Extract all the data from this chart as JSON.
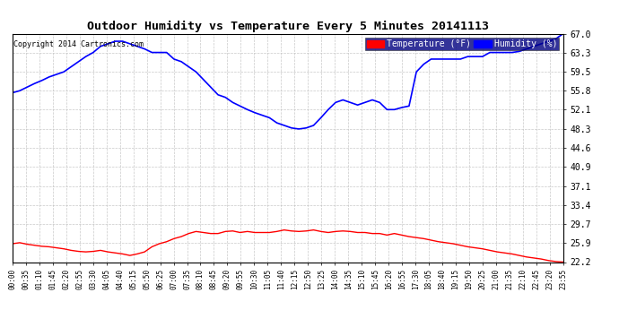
{
  "title": "Outdoor Humidity vs Temperature Every 5 Minutes 20141113",
  "copyright": "Copyright 2014 Cartronics.com",
  "legend_temp_label": "Temperature (°F)",
  "legend_hum_label": "Humidity (%)",
  "temp_color": "#FF0000",
  "hum_color": "#0000FF",
  "background_color": "#FFFFFF",
  "grid_color": "#BBBBBB",
  "ylim": [
    22.2,
    67.0
  ],
  "yticks": [
    22.2,
    25.9,
    29.7,
    33.4,
    37.1,
    40.9,
    44.6,
    48.3,
    52.1,
    55.8,
    59.5,
    63.3,
    67.0
  ],
  "x_labels": [
    "00:00",
    "00:35",
    "01:10",
    "01:45",
    "02:20",
    "02:55",
    "03:30",
    "04:05",
    "04:40",
    "05:15",
    "05:50",
    "06:25",
    "07:00",
    "07:35",
    "08:10",
    "08:45",
    "09:20",
    "09:55",
    "10:30",
    "11:05",
    "11:40",
    "12:15",
    "12:50",
    "13:25",
    "14:00",
    "14:35",
    "15:10",
    "15:45",
    "16:20",
    "16:55",
    "17:30",
    "18:05",
    "18:40",
    "19:15",
    "19:50",
    "20:25",
    "21:00",
    "21:35",
    "22:10",
    "22:45",
    "23:20",
    "23:55"
  ],
  "hum_data": [
    55.4,
    55.8,
    56.5,
    57.2,
    57.8,
    58.5,
    59.0,
    59.5,
    60.5,
    61.5,
    62.5,
    63.3,
    64.5,
    65.0,
    65.5,
    65.5,
    65.0,
    64.5,
    64.0,
    63.3,
    63.3,
    63.3,
    62.0,
    61.5,
    60.5,
    59.5,
    58.0,
    56.5,
    55.0,
    54.5,
    53.5,
    52.8,
    52.1,
    51.5,
    51.0,
    50.5,
    49.5,
    49.0,
    48.5,
    48.3,
    48.5,
    49.0,
    50.5,
    52.1,
    53.5,
    54.0,
    53.5,
    53.0,
    53.5,
    54.0,
    53.5,
    52.1,
    52.1,
    52.5,
    52.8,
    59.5,
    61.0,
    62.0,
    62.0,
    62.0,
    62.0,
    62.0,
    62.5,
    62.5,
    62.5,
    63.3,
    63.3,
    63.3,
    63.3,
    63.5,
    64.0,
    64.5,
    65.0,
    65.5,
    66.0,
    67.0
  ],
  "temp_data": [
    25.8,
    26.0,
    25.7,
    25.5,
    25.3,
    25.2,
    25.0,
    24.8,
    24.5,
    24.3,
    24.2,
    24.3,
    24.5,
    24.2,
    24.0,
    23.8,
    23.5,
    23.8,
    24.2,
    25.2,
    25.8,
    26.2,
    26.8,
    27.2,
    27.8,
    28.2,
    28.0,
    27.8,
    27.8,
    28.2,
    28.3,
    28.0,
    28.2,
    28.0,
    28.0,
    28.0,
    28.2,
    28.5,
    28.3,
    28.2,
    28.3,
    28.5,
    28.2,
    28.0,
    28.2,
    28.3,
    28.2,
    28.0,
    28.0,
    27.8,
    27.8,
    27.5,
    27.8,
    27.5,
    27.2,
    27.0,
    26.8,
    26.5,
    26.2,
    26.0,
    25.8,
    25.5,
    25.2,
    25.0,
    24.8,
    24.5,
    24.2,
    24.0,
    23.8,
    23.5,
    23.2,
    23.0,
    22.8,
    22.5,
    22.3,
    22.2
  ]
}
